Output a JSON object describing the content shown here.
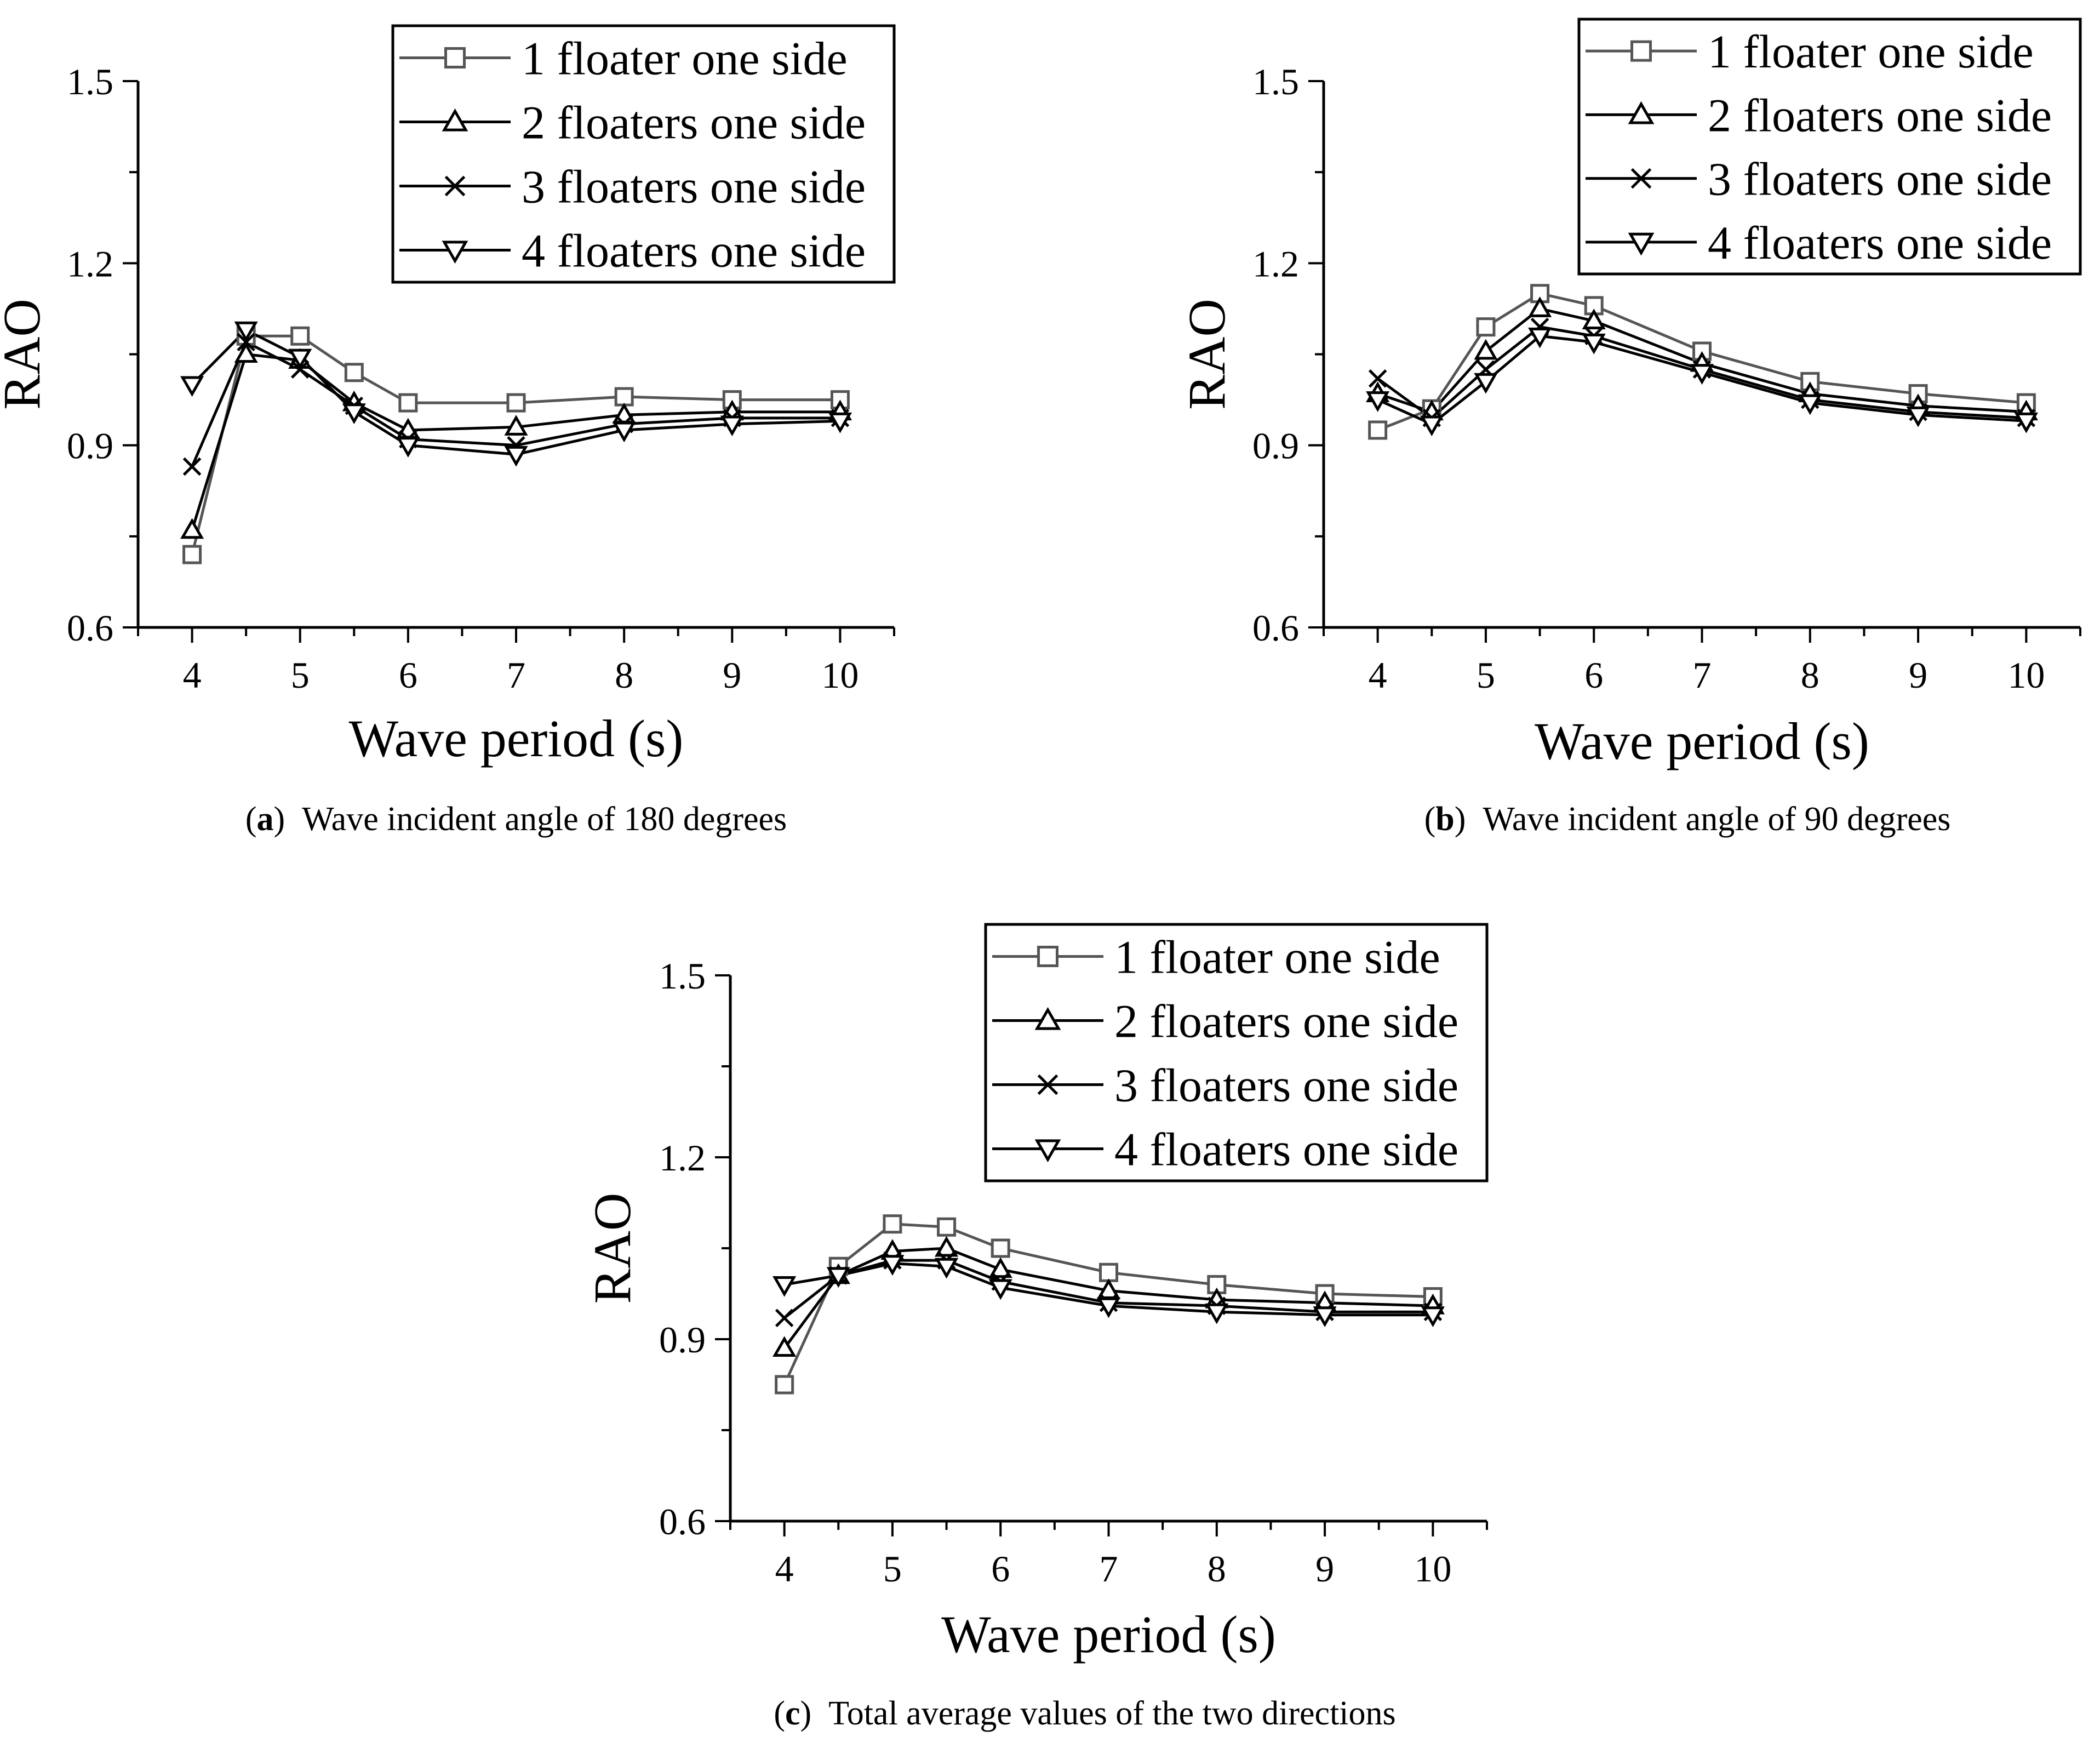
{
  "chart_data": [
    {
      "type": "line",
      "id": "a",
      "caption_tag": "a",
      "caption": "Wave incident angle of 180 degrees",
      "xlabel": "Wave period (s)",
      "ylabel": "RAO",
      "xlim": [
        3.5,
        10.5
      ],
      "ylim": [
        0.6,
        1.5
      ],
      "xticks": [
        4,
        5,
        6,
        7,
        8,
        9,
        10
      ],
      "yticks": [
        0.6,
        0.9,
        1.2,
        1.5
      ],
      "ytick_labels": [
        "0.6",
        "0.9",
        "1.2",
        "1.5"
      ],
      "x": [
        4,
        4.5,
        5,
        5.5,
        6,
        7,
        8,
        9,
        10
      ],
      "legend_position": "top-right",
      "series": [
        {
          "name": "1 floater one side",
          "marker": "square",
          "color": "#555555",
          "values": [
            0.72,
            1.08,
            1.08,
            1.02,
            0.97,
            0.97,
            0.98,
            0.975,
            0.975
          ]
        },
        {
          "name": "2 floaters one side",
          "marker": "triangle-up",
          "color": "#000000",
          "values": [
            0.76,
            1.05,
            1.04,
            0.97,
            0.925,
            0.93,
            0.95,
            0.955,
            0.955
          ]
        },
        {
          "name": "3 floaters one side",
          "marker": "x",
          "color": "#000000",
          "values": [
            0.865,
            1.07,
            1.025,
            0.965,
            0.91,
            0.9,
            0.935,
            0.945,
            0.945
          ]
        },
        {
          "name": "4 floaters one side",
          "marker": "triangle-down",
          "color": "#000000",
          "values": [
            1.0,
            1.09,
            1.045,
            0.955,
            0.9,
            0.885,
            0.925,
            0.935,
            0.94
          ]
        }
      ]
    },
    {
      "type": "line",
      "id": "b",
      "caption_tag": "b",
      "caption": "Wave incident angle of 90 degrees",
      "xlabel": "Wave period (s)",
      "ylabel": "RAO",
      "xlim": [
        3.5,
        10.5
      ],
      "ylim": [
        0.6,
        1.5
      ],
      "xticks": [
        4,
        5,
        6,
        7,
        8,
        9,
        10
      ],
      "yticks": [
        0.6,
        0.9,
        1.2,
        1.5
      ],
      "ytick_labels": [
        "0.6",
        "0.9",
        "1.2",
        "1.5"
      ],
      "x": [
        4,
        4.5,
        5,
        5.5,
        6,
        7,
        8,
        9,
        10
      ],
      "legend_position": "top-right",
      "series": [
        {
          "name": "1 floater one side",
          "marker": "square",
          "color": "#555555",
          "values": [
            0.925,
            0.96,
            1.095,
            1.15,
            1.13,
            1.055,
            1.005,
            0.985,
            0.97
          ]
        },
        {
          "name": "2 floaters one side",
          "marker": "triangle-up",
          "color": "#000000",
          "values": [
            0.985,
            0.955,
            1.055,
            1.125,
            1.105,
            1.035,
            0.985,
            0.965,
            0.955
          ]
        },
        {
          "name": "3 floaters one side",
          "marker": "x",
          "color": "#000000",
          "values": [
            1.01,
            0.945,
            1.025,
            1.095,
            1.08,
            1.025,
            0.975,
            0.955,
            0.945
          ]
        },
        {
          "name": "4 floaters one side",
          "marker": "triangle-down",
          "color": "#000000",
          "values": [
            0.975,
            0.935,
            1.005,
            1.08,
            1.07,
            1.02,
            0.97,
            0.95,
            0.94
          ]
        }
      ]
    },
    {
      "type": "line",
      "id": "c",
      "caption_tag": "c",
      "caption": "Total average values of the two directions",
      "xlabel": "Wave period (s)",
      "ylabel": "RAO",
      "xlim": [
        3.5,
        10.5
      ],
      "ylim": [
        0.6,
        1.5
      ],
      "xticks": [
        4,
        5,
        6,
        7,
        8,
        9,
        10
      ],
      "yticks": [
        0.6,
        0.9,
        1.2,
        1.5
      ],
      "ytick_labels": [
        "0.6",
        "0.9",
        "1.2",
        "1.5"
      ],
      "x": [
        4,
        4.5,
        5,
        5.5,
        6,
        7,
        8,
        9,
        10
      ],
      "legend_position": "top-right",
      "series": [
        {
          "name": "1 floater one side",
          "marker": "square",
          "color": "#555555",
          "values": [
            0.825,
            1.02,
            1.09,
            1.085,
            1.05,
            1.01,
            0.99,
            0.975,
            0.97
          ]
        },
        {
          "name": "2 floaters one side",
          "marker": "triangle-up",
          "color": "#000000",
          "values": [
            0.885,
            1.005,
            1.045,
            1.05,
            1.015,
            0.98,
            0.965,
            0.96,
            0.955
          ]
        },
        {
          "name": "3 floaters one side",
          "marker": "x",
          "color": "#000000",
          "values": [
            0.935,
            1.005,
            1.03,
            1.03,
            0.995,
            0.96,
            0.955,
            0.945,
            0.945
          ]
        },
        {
          "name": "4 floaters one side",
          "marker": "triangle-down",
          "color": "#000000",
          "values": [
            0.99,
            1.005,
            1.025,
            1.02,
            0.985,
            0.955,
            0.945,
            0.94,
            0.94
          ]
        }
      ]
    }
  ]
}
